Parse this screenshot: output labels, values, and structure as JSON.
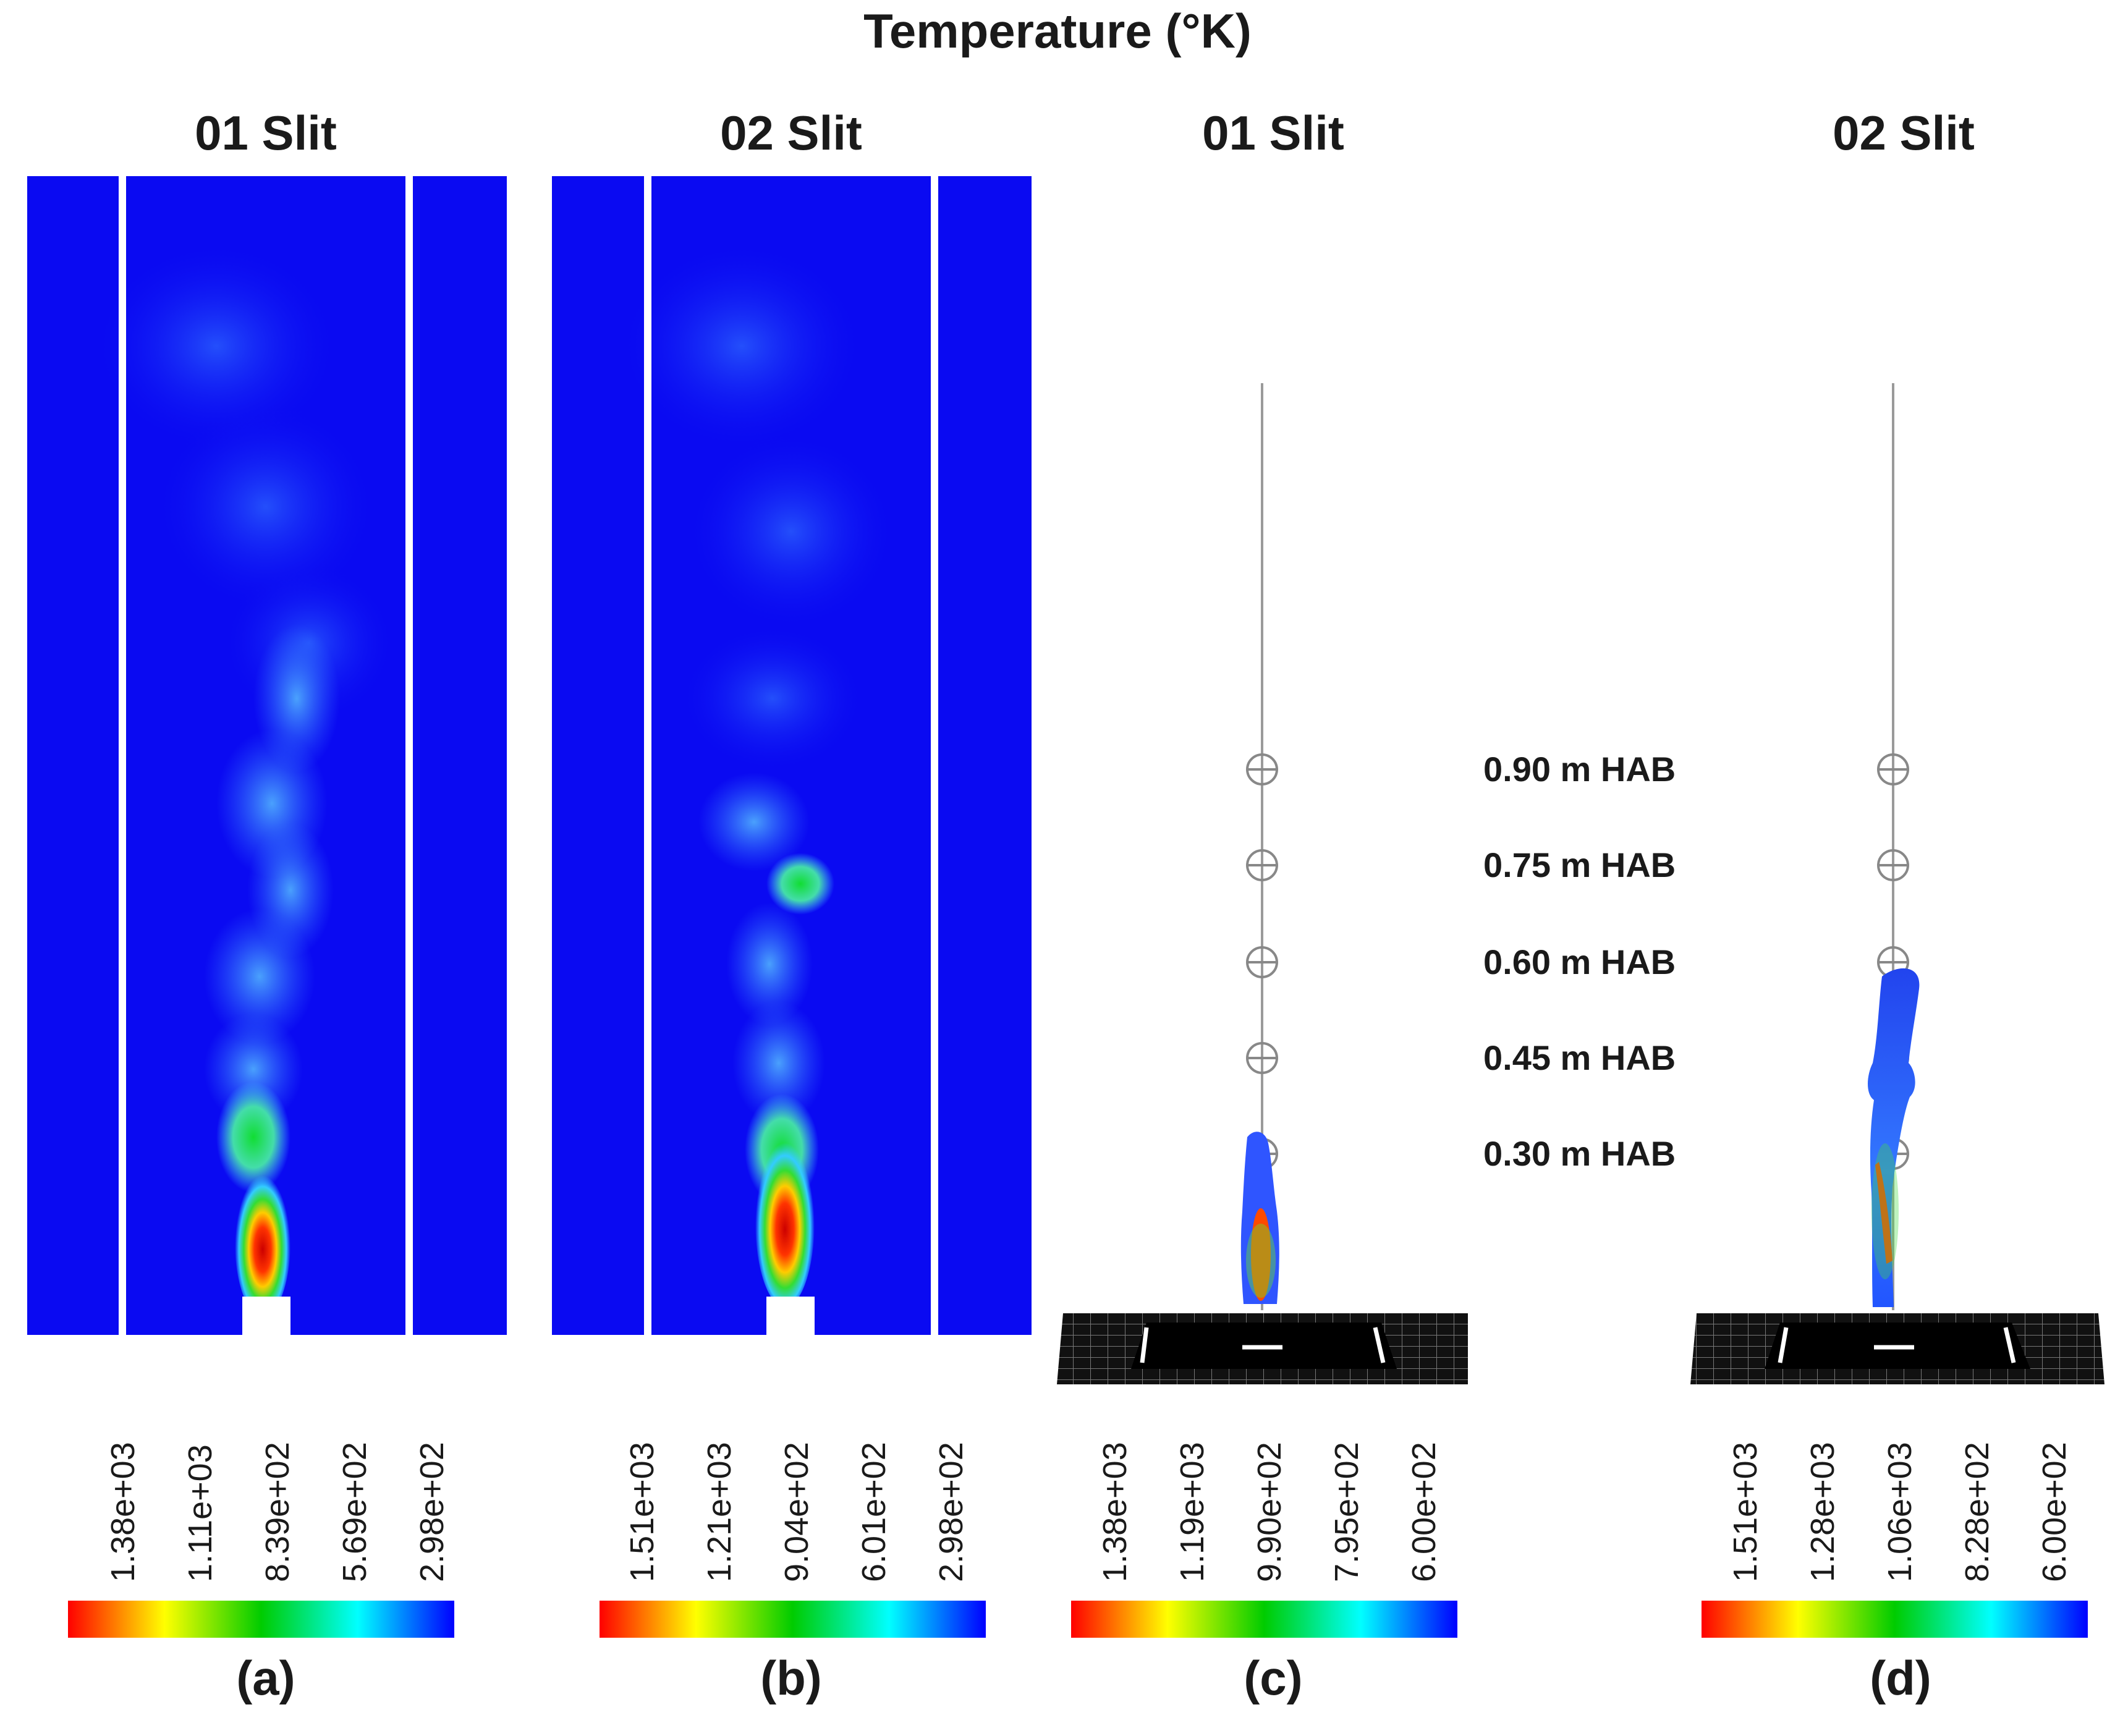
{
  "figure": {
    "title": "Temperature (°K)"
  },
  "panels": [
    {
      "title": "01 Slit",
      "label": "(a)",
      "ticks": [
        "1.38e+03",
        "1.11e+03",
        "8.39e+02",
        "5.69e+02",
        "2.98e+02"
      ]
    },
    {
      "title": "02 Slit",
      "label": "(b)",
      "ticks": [
        "1.51e+03",
        "1.21e+03",
        "9.04e+02",
        "6.01e+02",
        "2.98e+02"
      ]
    },
    {
      "title": "01 Slit",
      "label": "(c)",
      "ticks": [
        "1.38e+03",
        "1.19e+03",
        "9.90e+02",
        "7.95e+02",
        "6.00e+02"
      ]
    },
    {
      "title": "02 Slit",
      "label": "(d)",
      "ticks": [
        "1.51e+03",
        "1.28e+03",
        "1.06e+03",
        "8.28e+02",
        "6.00e+02"
      ]
    }
  ],
  "hab_labels": [
    "0.90 m HAB",
    "0.75 m HAB",
    "0.60 m HAB",
    "0.45 m HAB",
    "0.30 m HAB"
  ],
  "colors": {
    "background_field": "#0a0af2",
    "hot": "#ff1a00",
    "colormap": [
      "#ff0000",
      "#ffff00",
      "#00cc00",
      "#00ffff",
      "#0000ff"
    ]
  }
}
